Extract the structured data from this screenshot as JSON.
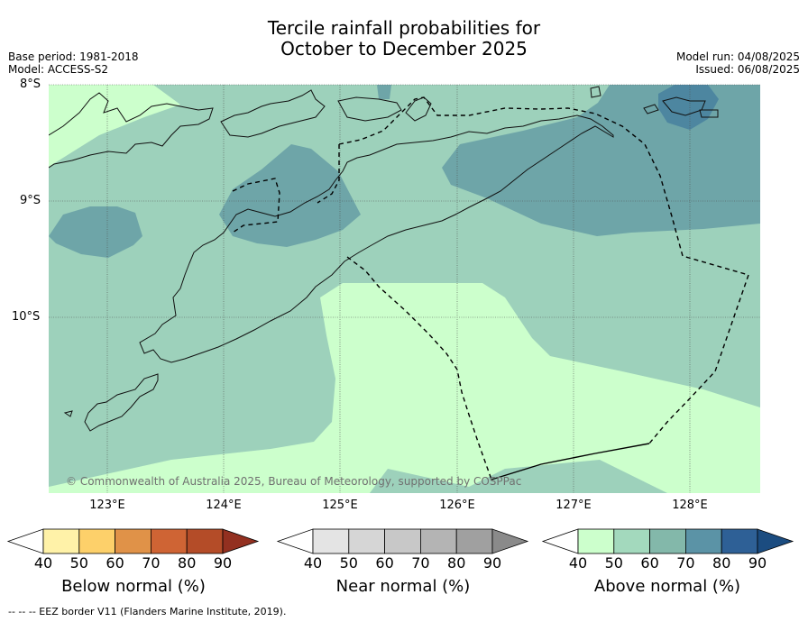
{
  "title_line1": "Tercile rainfall probabilities for",
  "title_line2": "October to December 2025",
  "base_period": "Base period: 1981-2018",
  "model": "Model: ACCESS-S2",
  "model_run": "Model run: 04/08/2025",
  "issued": "Issued: 06/08/2025",
  "lat_labels": [
    "8°S",
    "9°S",
    "10°S"
  ],
  "lon_labels": [
    "123°E",
    "124°E",
    "125°E",
    "126°E",
    "127°E",
    "128°E"
  ],
  "copyright": "© Commonwealth of Australia 2025, Bureau of Meteorology, supported by COSPPac",
  "colorbars": [
    {
      "title": "Below normal (%)",
      "ticks": [
        "40",
        "50",
        "60",
        "70",
        "80",
        "90"
      ],
      "colors": [
        "#fff2a8",
        "#fdd06a",
        "#e09248",
        "#cf6434",
        "#b44c28",
        "#933020"
      ]
    },
    {
      "title": "Near normal (%)",
      "ticks": [
        "40",
        "50",
        "60",
        "70",
        "80",
        "90"
      ],
      "colors": [
        "#e4e4e4",
        "#d6d6d6",
        "#c8c8c8",
        "#b4b4b4",
        "#a0a0a0",
        "#8a8a8a"
      ]
    },
    {
      "title": "Above normal (%)",
      "ticks": [
        "40",
        "50",
        "60",
        "70",
        "80",
        "90"
      ],
      "colors": [
        "#ccffcc",
        "#a3d9bd",
        "#83b8aa",
        "#5b93a6",
        "#2e6096",
        "#1b4c80"
      ]
    }
  ],
  "footnote": "--  --  -- EEZ border V11 (Flanders Marine Institute, 2019).",
  "colors": {
    "above_40_50": "#ccffcc",
    "above_50_60": "#9dd1bb",
    "above_60_70": "#6ea5a8",
    "above_70_80": "#4d86a0"
  }
}
